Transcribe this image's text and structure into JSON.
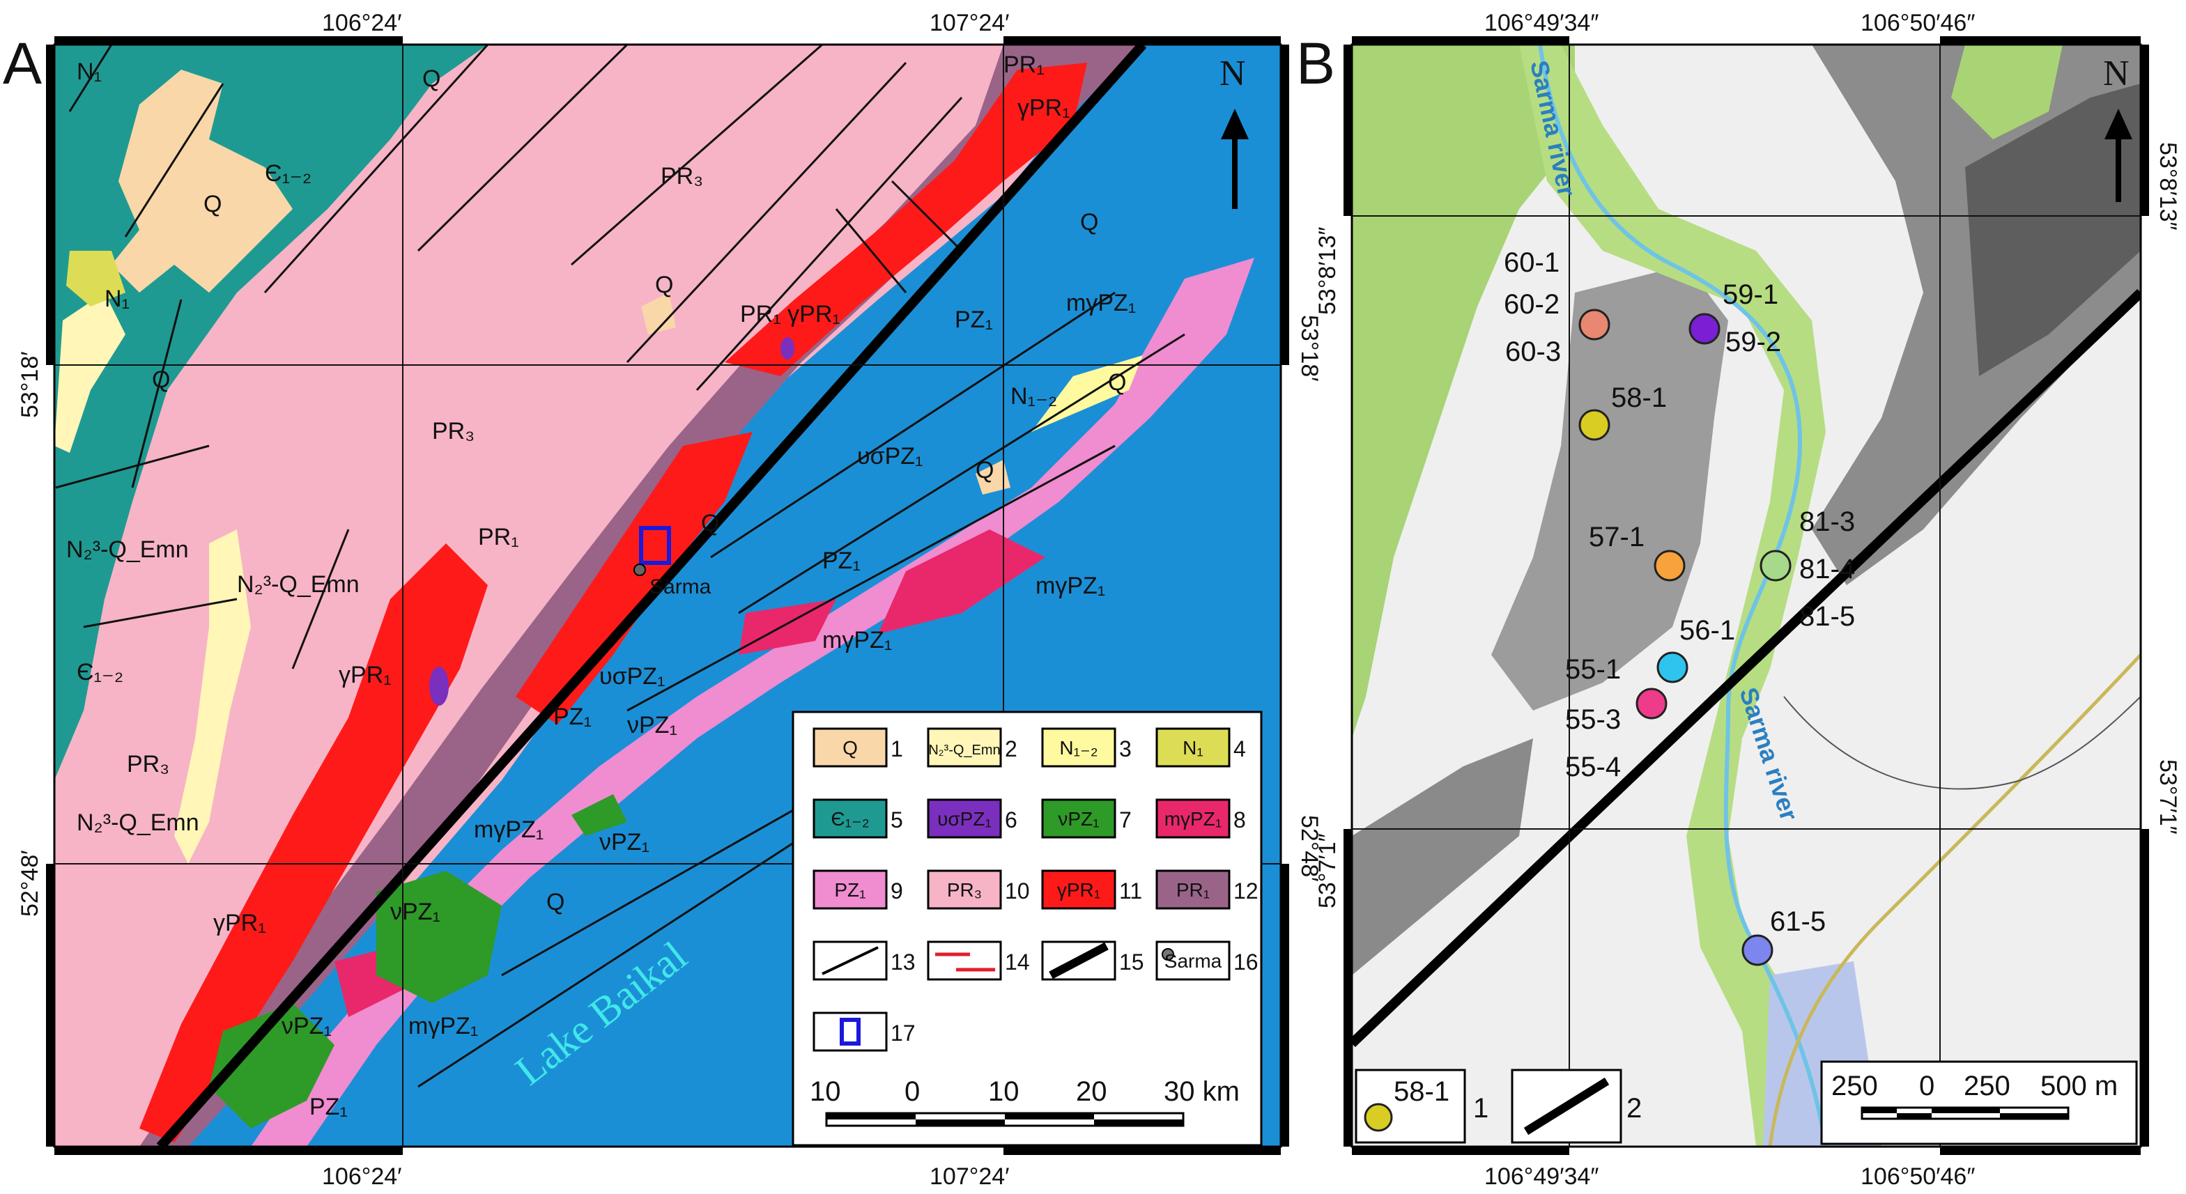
{
  "panelA": {
    "letter": "A",
    "coords": {
      "top_left": "106°24′",
      "top_right": "107°24′",
      "bottom_left": "106°24′",
      "bottom_right": "107°24′",
      "left_upper": "53°18′",
      "left_lower": "52°48′",
      "right_upper": "53°18′",
      "right_lower": "52°48′"
    },
    "north": "N",
    "unit_labels": {
      "Q": "Q",
      "PR3": "PR₃",
      "PR1": "PR₁",
      "gPR1": "γPR₁",
      "PZ1": "PZ₁",
      "mgPZ1": "mγPZ₁",
      "usPZ1": "υσPZ₁",
      "vPZ1": "νPZ₁",
      "N1": "N₁",
      "N12": "N₁₋₂",
      "C12": "Є₁₋₂",
      "NQmn": "N₂³-Q_Emn",
      "PR1gPR1": "PR₁ γPR₁"
    },
    "places": {
      "sarma": "Sarma",
      "lake": "Lake Baikal"
    },
    "legend": {
      "items": [
        {
          "num": "1",
          "label": "Q",
          "color": "#f9d7a8"
        },
        {
          "num": "2",
          "label": "N₂³-Q_Emn",
          "color": "#fff6b8"
        },
        {
          "num": "3",
          "label": "N₁₋₂",
          "color": "#fffaa0"
        },
        {
          "num": "4",
          "label": "N₁",
          "color": "#dddd55"
        },
        {
          "num": "5",
          "label": "Є₁₋₂",
          "color": "#1f9a92"
        },
        {
          "num": "6",
          "label": "υσPZ₁",
          "color": "#7b2fbe"
        },
        {
          "num": "7",
          "label": "νPZ₁",
          "color": "#2e9a28"
        },
        {
          "num": "8",
          "label": "mγPZ₁",
          "color": "#e8286a"
        },
        {
          "num": "9",
          "label": "PZ₁",
          "color": "#f08cd0"
        },
        {
          "num": "10",
          "label": "PR₃",
          "color": "#f7b4c6"
        },
        {
          "num": "11",
          "label": "γPR₁",
          "color": "#ff1a1a"
        },
        {
          "num": "12",
          "label": "PR₁",
          "color": "#9a6488"
        },
        {
          "num": "13",
          "label": "",
          "color": "#ffffff"
        },
        {
          "num": "14",
          "label": "",
          "color": "#ffffff"
        },
        {
          "num": "15",
          "label": "",
          "color": "#ffffff"
        },
        {
          "num": "16",
          "label": "Sarma",
          "color": "#ffffff"
        },
        {
          "num": "17",
          "label": "",
          "color": "#ffffff"
        }
      ]
    },
    "scale": {
      "ticks": [
        "10",
        "0",
        "10",
        "20",
        "30 km"
      ]
    }
  },
  "panelB": {
    "letter": "B",
    "coords": {
      "top_left": "106°49′34″",
      "top_right": "106°50′46″",
      "bottom_left": "106°49′34″",
      "bottom_right": "106°50′46″",
      "left_upper": "53°8′13″",
      "left_lower": "53°7′1″",
      "right_upper": "53°8′13″",
      "right_lower": "53°7′1″"
    },
    "north": "N",
    "river": "Sarma river",
    "samples": [
      {
        "label": "60-1",
        "color": "#e88872"
      },
      {
        "label": "60-2",
        "color": "#e88872"
      },
      {
        "label": "60-3",
        "color": "#e88872"
      },
      {
        "label": "59-1",
        "color": "#7a1fd4"
      },
      {
        "label": "59-2",
        "color": "#7a1fd4"
      },
      {
        "label": "58-1",
        "color": "#d9cc22"
      },
      {
        "label": "57-1",
        "color": "#f7a23a"
      },
      {
        "label": "81-3",
        "color": "#a6d98a"
      },
      {
        "label": "81-4",
        "color": "#a6d98a"
      },
      {
        "label": "81-5",
        "color": "#a6d98a"
      },
      {
        "label": "56-1",
        "color": "#2ec4ee"
      },
      {
        "label": "55-1",
        "color": "#ee3b8a"
      },
      {
        "label": "55-3",
        "color": "#ee3b8a"
      },
      {
        "label": "55-4",
        "color": "#ee3b8a"
      },
      {
        "label": "61-5",
        "color": "#7d85ee"
      }
    ],
    "legend": {
      "sample": "58-1",
      "item1": "1",
      "item2": "2"
    },
    "scale": {
      "ticks": [
        "250",
        "0",
        "250",
        "500 m"
      ]
    }
  }
}
